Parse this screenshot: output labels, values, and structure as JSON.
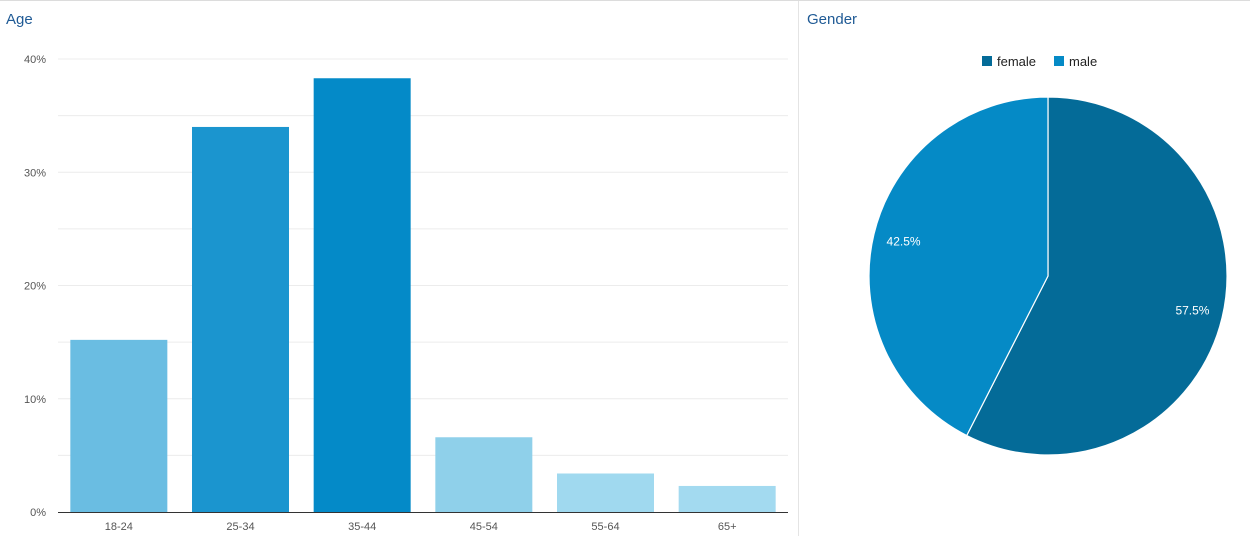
{
  "age_panel": {
    "title": "Age"
  },
  "gender_panel": {
    "title": "Gender"
  },
  "chart_data": [
    {
      "type": "bar",
      "title": "Age",
      "categories": [
        "18-24",
        "25-34",
        "35-44",
        "45-54",
        "55-64",
        "65+"
      ],
      "values": [
        15.2,
        34.0,
        38.3,
        6.6,
        3.4,
        2.3
      ],
      "colors": [
        "#6abde2",
        "#1b95cf",
        "#048ac8",
        "#8fd0ea",
        "#a0d9ef",
        "#a3daf0"
      ],
      "yticks": [
        "0%",
        "10%",
        "20%",
        "30%",
        "40%"
      ],
      "ylim": [
        0,
        40
      ],
      "grid": true
    },
    {
      "type": "pie",
      "title": "Gender",
      "slices": [
        {
          "label": "female",
          "value": 57.5,
          "display": "57.5%",
          "color": "#046b98"
        },
        {
          "label": "male",
          "value": 42.5,
          "display": "42.5%",
          "color": "#058ac6"
        }
      ],
      "legend_position": "top"
    }
  ]
}
